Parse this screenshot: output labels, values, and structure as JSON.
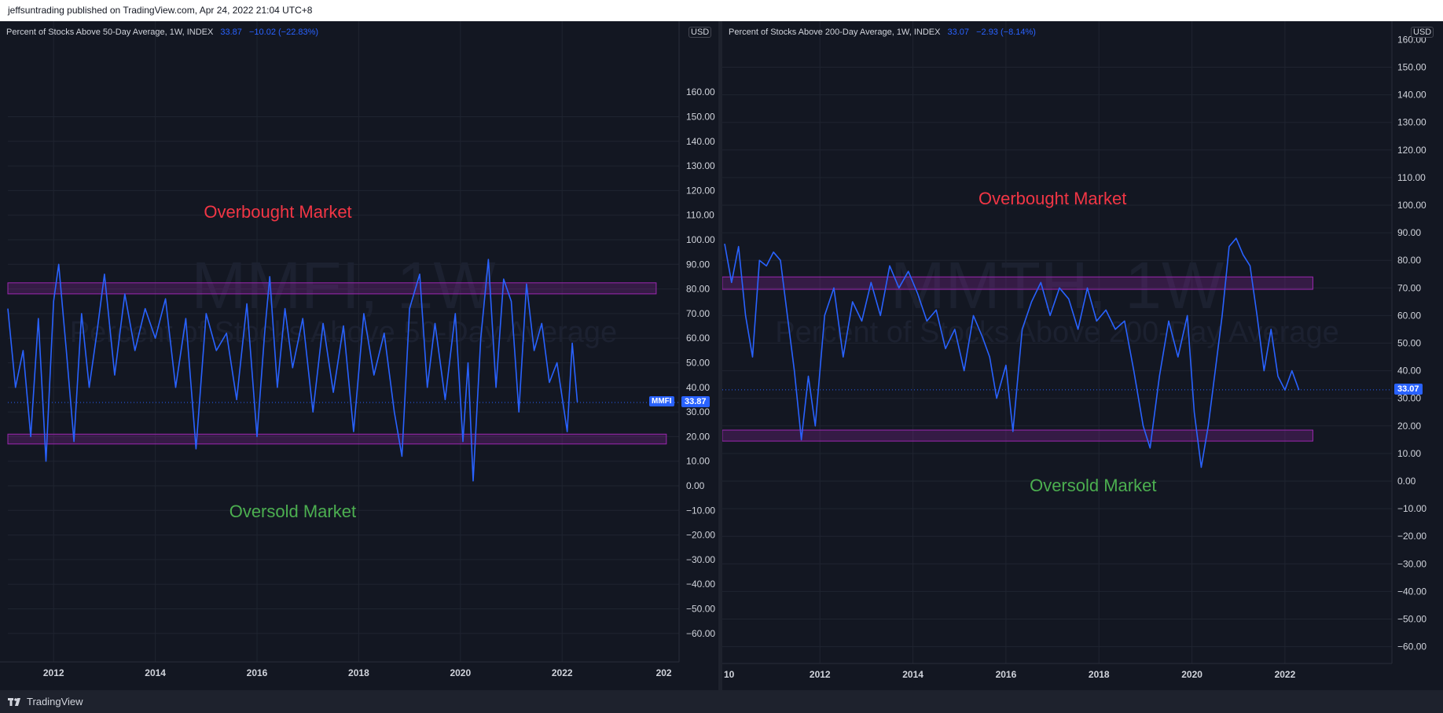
{
  "header": {
    "published_text": "jeffsuntrading published on TradingView.com, Apr 24, 2022 21:04 UTC+8"
  },
  "footer": {
    "brand": "TradingView"
  },
  "colors": {
    "background": "#131722",
    "line": "#2962ff",
    "zone_border": "#9c27b0",
    "zone_fill": "rgba(156,39,176,0.25)",
    "overbought": "#f23645",
    "oversold": "#4caf50",
    "grid": "#1f2430"
  },
  "chart_data": [
    {
      "type": "line",
      "legend": {
        "name": "Percent of Stocks Above 50-Day Average, 1W, INDEX",
        "last": "33.87",
        "change": "−10.02 (−22.83%)"
      },
      "currency": "USD",
      "symbol": "MMFI",
      "last_value": 33.87,
      "last_value_label": "33.87",
      "ylim": [
        -60,
        160
      ],
      "yticks": [
        150,
        140,
        130,
        120,
        110,
        100,
        90,
        80,
        70,
        60,
        50,
        40,
        30,
        20,
        10,
        0,
        -10,
        -20,
        -30,
        -40,
        -50,
        -60
      ],
      "ytick_labels": [
        "150.00",
        "140.00",
        "130.00",
        "120.00",
        "110.00",
        "100.00",
        "90.00",
        "80.00",
        "70.00",
        "60.00",
        "50.00",
        "40.00",
        "30.00",
        "20.00",
        "10.00",
        "0.00",
        "−10.00",
        "−20.00",
        "−30.00",
        "−40.00",
        "−50.00",
        "−60.00"
      ],
      "top_partial_label": "160.00",
      "xlim": [
        2011.1,
        2024.3
      ],
      "xticks": [
        2012,
        2014,
        2016,
        2018,
        2020,
        2022
      ],
      "xtick_labels": [
        "2012",
        "2014",
        "2016",
        "2018",
        "2020",
        "2022"
      ],
      "right_partial_label": "202",
      "watermark": {
        "symbol": "MMFI, 1W",
        "description": "Percent of Stocks Above 50-Day Average"
      },
      "zones": [
        {
          "from": 78,
          "to": 82.5,
          "x_end": 2023.85
        },
        {
          "from": 17,
          "to": 21,
          "x_end": 2024.05
        }
      ],
      "annotations": [
        {
          "text": "Overbought Market",
          "kind": "overbought",
          "x": 2016.5,
          "y": 111
        },
        {
          "text": "Oversold Market",
          "kind": "oversold",
          "x": 2017.0,
          "y": -11
        }
      ],
      "x": [
        2011.1,
        2011.25,
        2011.4,
        2011.55,
        2011.7,
        2011.85,
        2012.0,
        2012.1,
        2012.25,
        2012.4,
        2012.55,
        2012.7,
        2012.85,
        2013.0,
        2013.2,
        2013.4,
        2013.6,
        2013.8,
        2014.0,
        2014.2,
        2014.4,
        2014.6,
        2014.8,
        2015.0,
        2015.2,
        2015.4,
        2015.6,
        2015.8,
        2016.0,
        2016.15,
        2016.25,
        2016.4,
        2016.55,
        2016.7,
        2016.9,
        2017.1,
        2017.3,
        2017.5,
        2017.7,
        2017.9,
        2018.1,
        2018.3,
        2018.5,
        2018.7,
        2018.85,
        2019.0,
        2019.2,
        2019.35,
        2019.5,
        2019.7,
        2019.9,
        2020.05,
        2020.15,
        2020.25,
        2020.4,
        2020.55,
        2020.7,
        2020.85,
        2021.0,
        2021.15,
        2021.3,
        2021.45,
        2021.6,
        2021.75,
        2021.9,
        2022.0,
        2022.1,
        2022.2,
        2022.3
      ],
      "y": [
        72,
        40,
        55,
        20,
        68,
        10,
        75,
        90,
        55,
        18,
        70,
        40,
        62,
        86,
        45,
        78,
        55,
        72,
        60,
        76,
        40,
        68,
        15,
        70,
        55,
        62,
        35,
        74,
        20,
        62,
        85,
        40,
        72,
        48,
        68,
        30,
        66,
        38,
        65,
        22,
        70,
        45,
        62,
        30,
        12,
        72,
        86,
        40,
        66,
        35,
        70,
        18,
        50,
        2,
        60,
        92,
        40,
        84,
        75,
        30,
        82,
        55,
        66,
        42,
        50,
        36,
        22,
        58,
        34
      ]
    },
    {
      "type": "line",
      "legend": {
        "name": "Percent of Stocks Above 200-Day Average, 1W, INDEX",
        "last": "33.07",
        "change": "−2.93 (−8.14%)"
      },
      "currency": "USD",
      "symbol": "",
      "last_value": 33.07,
      "last_value_label": "33.07",
      "ylim": [
        -70,
        160
      ],
      "yticks": [
        150,
        140,
        130,
        120,
        110,
        100,
        90,
        80,
        70,
        60,
        50,
        40,
        30,
        20,
        10,
        0,
        -10,
        -20,
        -30,
        -40,
        -50,
        -60
      ],
      "ytick_labels": [
        "150.00",
        "140.00",
        "130.00",
        "120.00",
        "110.00",
        "100.00",
        "90.00",
        "80.00",
        "70.00",
        "60.00",
        "50.00",
        "40.00",
        "30.00",
        "20.00",
        "10.00",
        "0.00",
        "−10.00",
        "−20.00",
        "−30.00",
        "−40.00",
        "−50.00",
        "−60.00"
      ],
      "top_partial_label": "160.00",
      "xlim": [
        2009.9,
        2024.3
      ],
      "xticks": [
        2012,
        2014,
        2016,
        2018,
        2020,
        2022
      ],
      "xtick_labels": [
        "2012",
        "2014",
        "2016",
        "2018",
        "2020",
        "2022"
      ],
      "left_partial_label": "10",
      "watermark": {
        "symbol": "MMTH, 1W",
        "description": "Percent of Stocks Above 200-Day Average"
      },
      "zones": [
        {
          "from": 69.5,
          "to": 74,
          "x_end": 2022.6
        },
        {
          "from": 14.5,
          "to": 18.5,
          "x_end": 2022.6
        }
      ],
      "annotations": [
        {
          "text": "Overbought Market",
          "kind": "overbought",
          "x": 2017.1,
          "y": 102
        },
        {
          "text": "Oversold Market",
          "kind": "oversold",
          "x": 2018.2,
          "y": -2
        }
      ],
      "x": [
        2009.95,
        2010.1,
        2010.25,
        2010.4,
        2010.55,
        2010.7,
        2010.85,
        2011.0,
        2011.15,
        2011.3,
        2011.45,
        2011.6,
        2011.75,
        2011.9,
        2012.1,
        2012.3,
        2012.5,
        2012.7,
        2012.9,
        2013.1,
        2013.3,
        2013.5,
        2013.7,
        2013.9,
        2014.1,
        2014.3,
        2014.5,
        2014.7,
        2014.9,
        2015.1,
        2015.3,
        2015.5,
        2015.65,
        2015.8,
        2016.0,
        2016.15,
        2016.35,
        2016.55,
        2016.75,
        2016.95,
        2017.15,
        2017.35,
        2017.55,
        2017.75,
        2017.95,
        2018.15,
        2018.35,
        2018.55,
        2018.75,
        2018.95,
        2019.1,
        2019.3,
        2019.5,
        2019.7,
        2019.9,
        2020.05,
        2020.2,
        2020.35,
        2020.5,
        2020.65,
        2020.8,
        2020.95,
        2021.1,
        2021.25,
        2021.4,
        2021.55,
        2021.7,
        2021.85,
        2022.0,
        2022.15,
        2022.3
      ],
      "y": [
        86,
        72,
        85,
        60,
        45,
        80,
        78,
        83,
        80,
        60,
        40,
        15,
        38,
        20,
        60,
        70,
        45,
        65,
        58,
        72,
        60,
        78,
        70,
        76,
        68,
        58,
        62,
        48,
        55,
        40,
        60,
        52,
        45,
        30,
        42,
        18,
        55,
        65,
        72,
        60,
        70,
        66,
        55,
        70,
        58,
        62,
        55,
        58,
        40,
        20,
        12,
        38,
        58,
        45,
        60,
        25,
        5,
        20,
        40,
        60,
        85,
        88,
        82,
        78,
        60,
        40,
        55,
        38,
        33,
        40,
        33
      ]
    }
  ]
}
